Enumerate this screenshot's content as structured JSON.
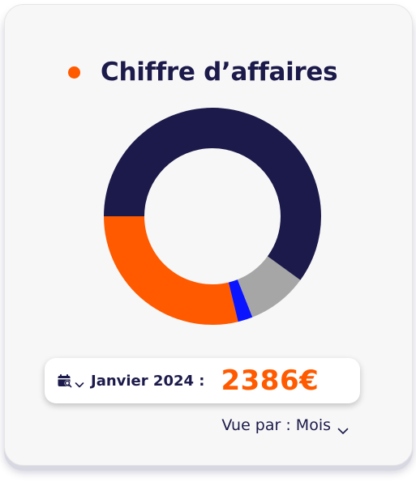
{
  "widget": {
    "title": "Chiffre d’affaires",
    "accent_color": "#ff5a00",
    "text_color": "#1b1a4a"
  },
  "period": {
    "calendar_icon": "calendar-search-icon",
    "dropdown_icon": "chevron-down-icon",
    "label": "Janvier 2024 :",
    "amount": "2386€"
  },
  "view": {
    "label": "Vue par : Mois",
    "dropdown_icon": "chevron-down-icon"
  },
  "chart_data": {
    "type": "pie",
    "variant": "donut",
    "slices": [
      {
        "value": 0.5,
        "color": "#1b1a4a"
      },
      {
        "value": 0.288,
        "color": "#ff5a00"
      },
      {
        "value": 0.022,
        "color": "#0a14ff"
      },
      {
        "value": 0.09,
        "color": "#a6a6a6"
      },
      {
        "value": 0.1,
        "color": "#1b1a4a"
      }
    ]
  }
}
